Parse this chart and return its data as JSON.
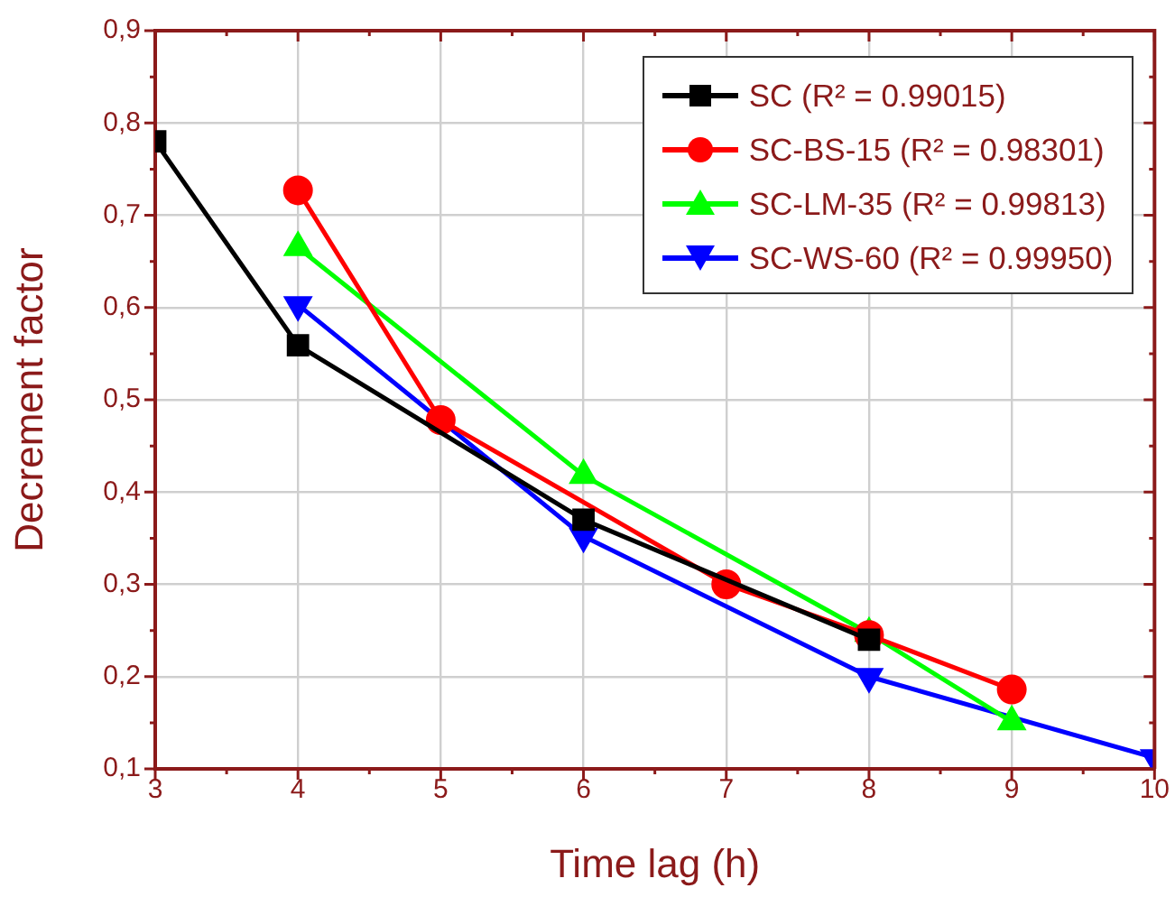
{
  "chart_data": {
    "type": "line",
    "xlabel": "Time lag (h)",
    "ylabel": "Decrement factor",
    "xlim": [
      3,
      10
    ],
    "xticks": [
      3,
      4,
      5,
      6,
      7,
      8,
      9,
      10
    ],
    "ylim": [
      0.1,
      0.9
    ],
    "yticks": [
      {
        "value": 0.1,
        "label": "0,1"
      },
      {
        "value": 0.2,
        "label": "0,2"
      },
      {
        "value": 0.3,
        "label": "0,3"
      },
      {
        "value": 0.4,
        "label": "0,4"
      },
      {
        "value": 0.5,
        "label": "0,5"
      },
      {
        "value": 0.6,
        "label": "0,6"
      },
      {
        "value": 0.7,
        "label": "0,7"
      },
      {
        "value": 0.8,
        "label": "0,8"
      },
      {
        "value": 0.9,
        "label": "0,9"
      }
    ],
    "grid": true,
    "legend": "top right",
    "line_style": "solid",
    "series": [
      {
        "name": "SC (R² = 0.99015)",
        "color": "#000000",
        "marker": "square",
        "x": [
          3,
          4,
          6,
          8
        ],
        "values": [
          0.78,
          0.559,
          0.37,
          0.24
        ]
      },
      {
        "name": "SC-BS-15 (R² = 0.98301)",
        "color": "#ff0000",
        "marker": "circle",
        "x": [
          4,
          5,
          7,
          8,
          9
        ],
        "values": [
          0.727,
          0.478,
          0.3,
          0.245,
          0.186
        ]
      },
      {
        "name": "SC-LM-35 (R² = 0.99813)",
        "color": "#00ff00",
        "marker": "triangle",
        "x": [
          4,
          6,
          8,
          9
        ],
        "values": [
          0.665,
          0.418,
          0.247,
          0.151
        ]
      },
      {
        "name": "SC-WS-60 (R² = 0.99950)",
        "color": "#0000ff",
        "marker": "triangle-down",
        "x": [
          4,
          6,
          8,
          10
        ],
        "values": [
          0.603,
          0.352,
          0.2,
          0.112
        ]
      }
    ]
  }
}
